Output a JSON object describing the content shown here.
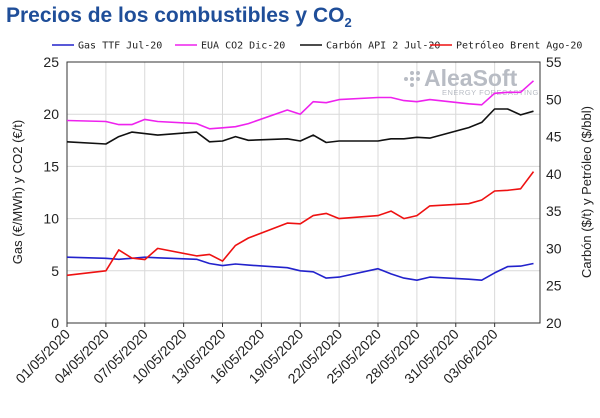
{
  "title": {
    "main": "Precios de los combustibles y CO",
    "sub": "2"
  },
  "logo": {
    "name": "AleaSoft",
    "tagline": "ENERGY FORECASTING",
    "color": "#b8bcc4"
  },
  "chart_data": {
    "type": "line",
    "ylabel_left": "Gas (€/MWh) y CO2 (€/t)",
    "ylabel_right": "Carbón ($/t) y Petróleo ($/bbl)",
    "ylim_left": [
      0,
      25
    ],
    "ylim_right": [
      20,
      55
    ],
    "yticks_left": [
      "0",
      "5",
      "10",
      "15",
      "20",
      "25"
    ],
    "yticks_right": [
      "20",
      "25",
      "30",
      "35",
      "40",
      "45",
      "50",
      "55"
    ],
    "x_labels": [
      "01/05/2020",
      "04/05/2020",
      "07/05/2020",
      "10/05/2020",
      "13/05/2020",
      "16/05/2020",
      "19/05/2020",
      "22/05/2020",
      "25/05/2020",
      "28/05/2020",
      "31/05/2020",
      "03/06/2020"
    ],
    "grid": true,
    "legend_position": "top",
    "series": [
      {
        "name": "Gas TTF Jul-20",
        "axis": "left",
        "color": "#2222cc",
        "points": [
          [
            "01/05/2020",
            6.3
          ],
          [
            "04/05/2020",
            6.2
          ],
          [
            "05/05/2020",
            6.1
          ],
          [
            "06/05/2020",
            6.2
          ],
          [
            "07/05/2020",
            6.3
          ],
          [
            "08/05/2020",
            6.25
          ],
          [
            "11/05/2020",
            6.1
          ],
          [
            "12/05/2020",
            5.7
          ],
          [
            "13/05/2020",
            5.5
          ],
          [
            "14/05/2020",
            5.65
          ],
          [
            "15/05/2020",
            5.55
          ],
          [
            "18/05/2020",
            5.3
          ],
          [
            "19/05/2020",
            5.0
          ],
          [
            "20/05/2020",
            4.9
          ],
          [
            "21/05/2020",
            4.3
          ],
          [
            "22/05/2020",
            4.4
          ],
          [
            "25/05/2020",
            5.2
          ],
          [
            "26/05/2020",
            4.7
          ],
          [
            "27/05/2020",
            4.3
          ],
          [
            "28/05/2020",
            4.1
          ],
          [
            "29/05/2020",
            4.4
          ],
          [
            "01/06/2020",
            4.2
          ],
          [
            "02/06/2020",
            4.1
          ],
          [
            "03/06/2020",
            4.8
          ],
          [
            "04/06/2020",
            5.4
          ],
          [
            "05/06/2020",
            5.45
          ],
          [
            "06/06/2020",
            5.7
          ]
        ]
      },
      {
        "name": "EUA CO2 Dic-20",
        "axis": "left",
        "color": "#ee22ee",
        "points": [
          [
            "01/05/2020",
            19.4
          ],
          [
            "04/05/2020",
            19.3
          ],
          [
            "05/05/2020",
            19.0
          ],
          [
            "06/05/2020",
            19.0
          ],
          [
            "07/05/2020",
            19.5
          ],
          [
            "08/05/2020",
            19.3
          ],
          [
            "11/05/2020",
            19.1
          ],
          [
            "12/05/2020",
            18.6
          ],
          [
            "13/05/2020",
            18.7
          ],
          [
            "14/05/2020",
            18.8
          ],
          [
            "15/05/2020",
            19.1
          ],
          [
            "18/05/2020",
            20.4
          ],
          [
            "19/05/2020",
            20.0
          ],
          [
            "20/05/2020",
            21.2
          ],
          [
            "21/05/2020",
            21.1
          ],
          [
            "22/05/2020",
            21.4
          ],
          [
            "25/05/2020",
            21.6
          ],
          [
            "26/05/2020",
            21.6
          ],
          [
            "27/05/2020",
            21.3
          ],
          [
            "28/05/2020",
            21.2
          ],
          [
            "29/05/2020",
            21.4
          ],
          [
            "01/06/2020",
            21.0
          ],
          [
            "02/06/2020",
            20.9
          ],
          [
            "03/06/2020",
            22.0
          ],
          [
            "04/06/2020",
            22.1
          ],
          [
            "05/06/2020",
            22.1
          ],
          [
            "06/06/2020",
            23.2
          ]
        ]
      },
      {
        "name": "Carbón API 2 Jul-20",
        "axis": "right",
        "color": "#111111",
        "points": [
          [
            "01/05/2020",
            44.3
          ],
          [
            "04/05/2020",
            44.0
          ],
          [
            "05/05/2020",
            45.0
          ],
          [
            "06/05/2020",
            45.6
          ],
          [
            "07/05/2020",
            45.4
          ],
          [
            "08/05/2020",
            45.2
          ],
          [
            "11/05/2020",
            45.6
          ],
          [
            "12/05/2020",
            44.3
          ],
          [
            "13/05/2020",
            44.4
          ],
          [
            "14/05/2020",
            45.0
          ],
          [
            "15/05/2020",
            44.5
          ],
          [
            "18/05/2020",
            44.7
          ],
          [
            "19/05/2020",
            44.4
          ],
          [
            "20/05/2020",
            45.2
          ],
          [
            "21/05/2020",
            44.2
          ],
          [
            "22/05/2020",
            44.4
          ],
          [
            "25/05/2020",
            44.4
          ],
          [
            "26/05/2020",
            44.7
          ],
          [
            "27/05/2020",
            44.7
          ],
          [
            "28/05/2020",
            44.9
          ],
          [
            "29/05/2020",
            44.8
          ],
          [
            "01/06/2020",
            46.2
          ],
          [
            "02/06/2020",
            46.9
          ],
          [
            "03/06/2020",
            48.7
          ],
          [
            "04/06/2020",
            48.7
          ],
          [
            "05/06/2020",
            47.9
          ],
          [
            "06/06/2020",
            48.4
          ]
        ]
      },
      {
        "name": "Petróleo Brent Ago-20",
        "axis": "right",
        "color": "#ee1111",
        "points": [
          [
            "01/05/2020",
            26.4
          ],
          [
            "04/05/2020",
            27.0
          ],
          [
            "05/05/2020",
            29.8
          ],
          [
            "06/05/2020",
            28.7
          ],
          [
            "07/05/2020",
            28.5
          ],
          [
            "08/05/2020",
            30.0
          ],
          [
            "11/05/2020",
            29.0
          ],
          [
            "12/05/2020",
            29.2
          ],
          [
            "13/05/2020",
            28.3
          ],
          [
            "14/05/2020",
            30.4
          ],
          [
            "15/05/2020",
            31.4
          ],
          [
            "18/05/2020",
            33.4
          ],
          [
            "19/05/2020",
            33.3
          ],
          [
            "20/05/2020",
            34.4
          ],
          [
            "21/05/2020",
            34.7
          ],
          [
            "22/05/2020",
            34.0
          ],
          [
            "25/05/2020",
            34.4
          ],
          [
            "26/05/2020",
            35.0
          ],
          [
            "27/05/2020",
            34.0
          ],
          [
            "28/05/2020",
            34.4
          ],
          [
            "29/05/2020",
            35.7
          ],
          [
            "01/06/2020",
            36.0
          ],
          [
            "02/06/2020",
            36.5
          ],
          [
            "03/06/2020",
            37.7
          ],
          [
            "04/06/2020",
            37.8
          ],
          [
            "05/06/2020",
            38.0
          ],
          [
            "06/06/2020",
            40.3
          ]
        ]
      }
    ]
  }
}
